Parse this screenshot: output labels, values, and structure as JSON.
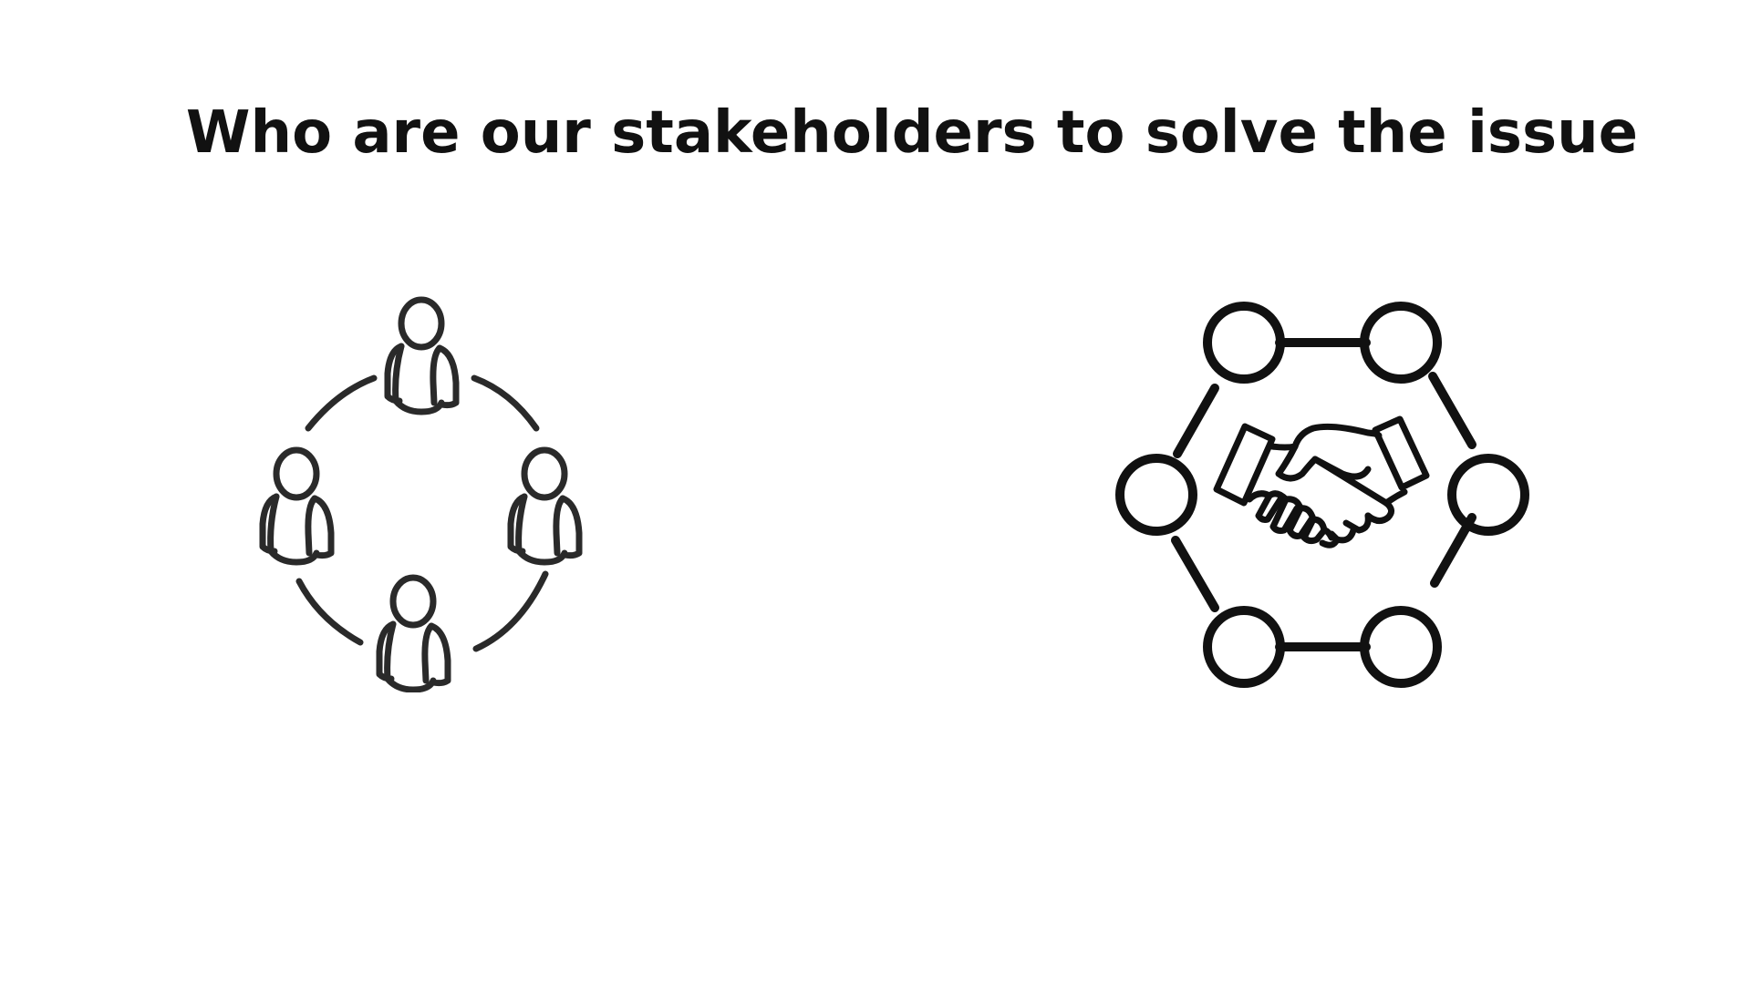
{
  "slide": {
    "title": "Who are our stakeholders to solve the issue"
  },
  "icons": {
    "left": "people-circle-icon",
    "right": "handshake-network-icon"
  },
  "colors": {
    "background": "#ffffff",
    "ink": "#111111",
    "people_ink": "#2a2a2a"
  }
}
